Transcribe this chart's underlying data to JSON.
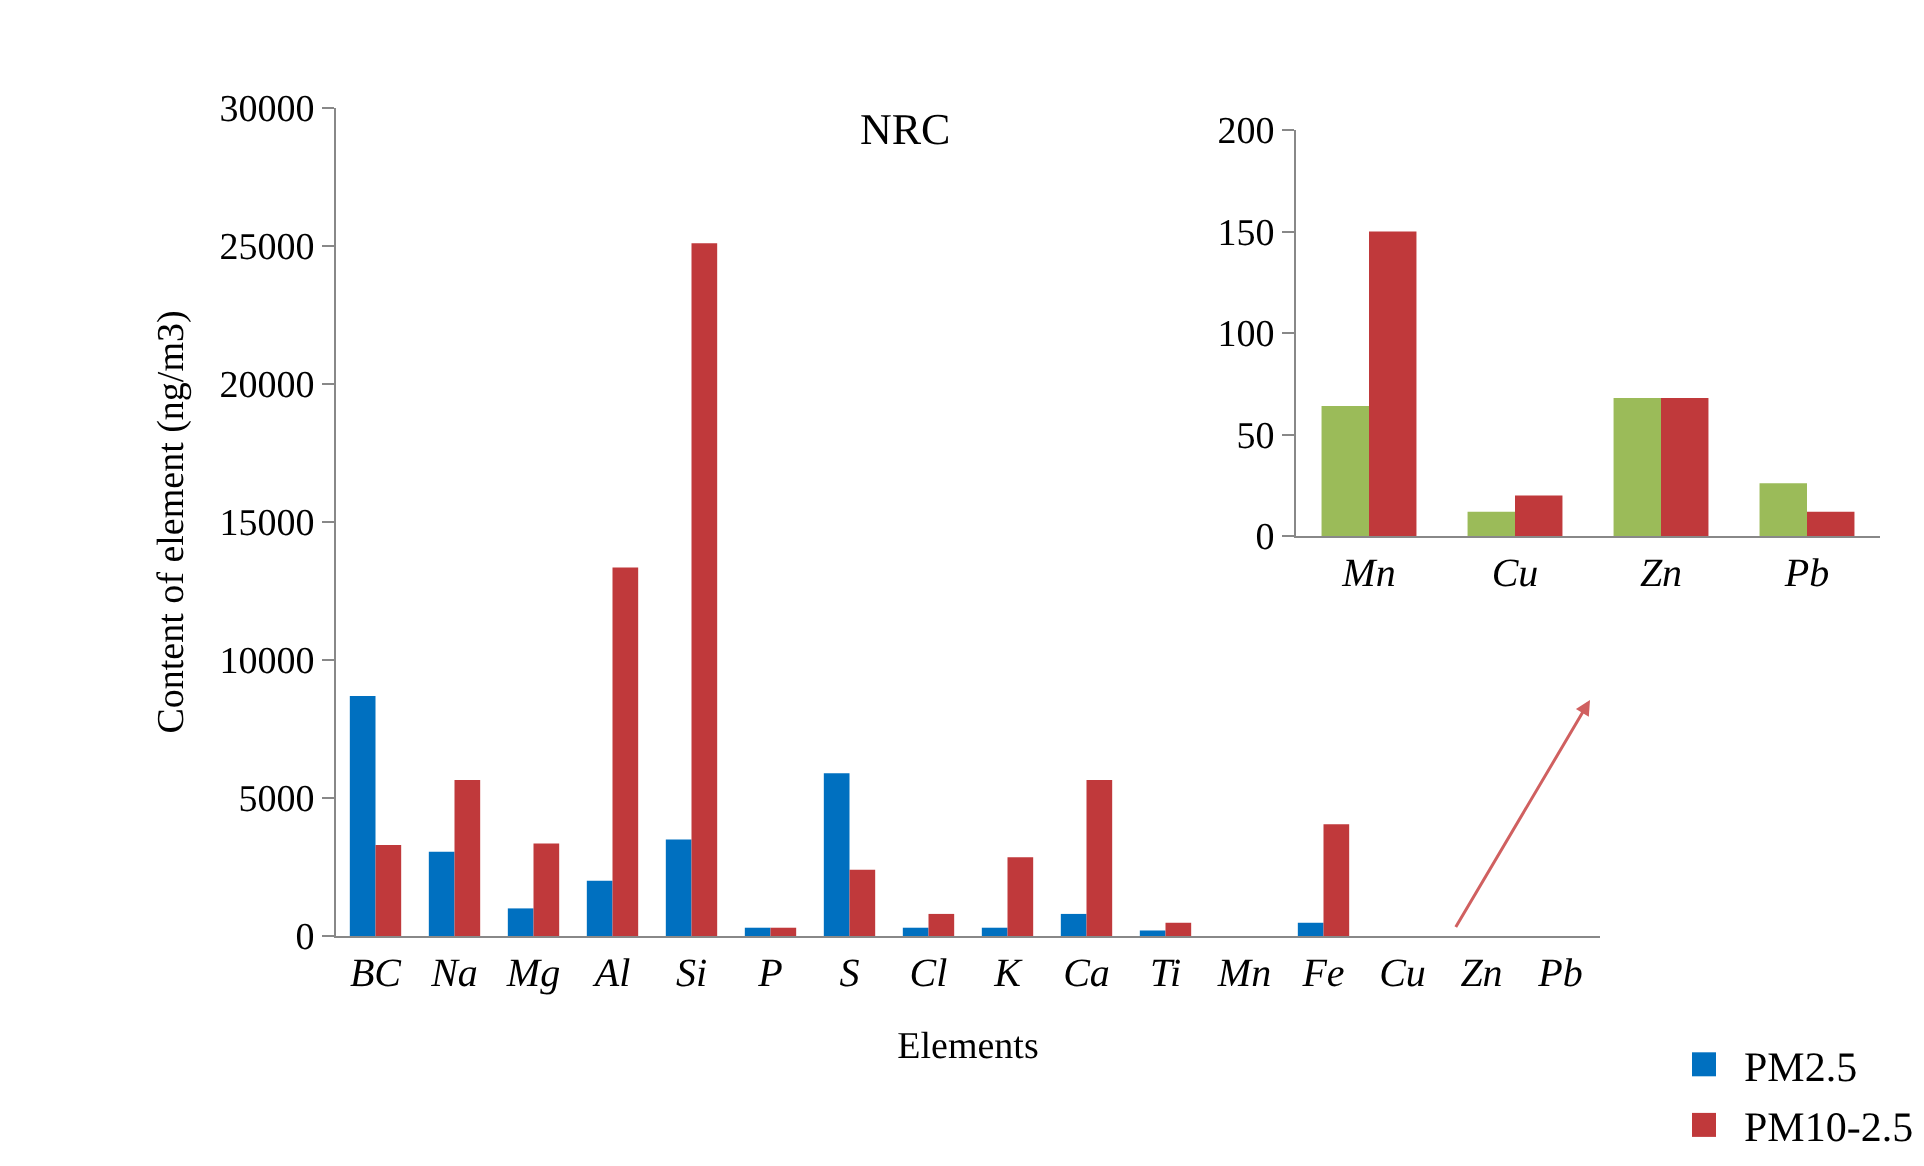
{
  "chart_data": [
    {
      "type": "bar",
      "title": "NRC",
      "xlabel": "Elements",
      "ylabel": "Content of element (ng/m3)",
      "categories": [
        "BC",
        "Na",
        "Mg",
        "Al",
        "Si",
        "P",
        "S",
        "Cl",
        "K",
        "Ca",
        "Ti",
        "Mn",
        "Fe",
        "Cu",
        "Zn",
        "Pb"
      ],
      "series": [
        {
          "name": "PM2.5",
          "color": "#0070c0",
          "values": [
            8700,
            3050,
            1000,
            2000,
            3500,
            300,
            5900,
            300,
            300,
            800,
            200,
            0,
            480,
            0,
            0,
            0
          ]
        },
        {
          "name": "PM10-2.5",
          "color": "#c0393b",
          "values": [
            3300,
            5650,
            3350,
            13350,
            25100,
            300,
            2400,
            800,
            2850,
            5650,
            480,
            0,
            4050,
            0,
            0,
            0
          ]
        }
      ],
      "ylim": [
        0,
        30000
      ],
      "yticks": [
        0,
        5000,
        10000,
        15000,
        20000,
        25000,
        30000
      ],
      "legend": "bottom right"
    },
    {
      "type": "bar",
      "categories": [
        "Mn",
        "Cu",
        "Zn",
        "Pb"
      ],
      "series": [
        {
          "color": "#9bbb59",
          "values": [
            64,
            12,
            68,
            26
          ]
        },
        {
          "color": "#c0393b",
          "values": [
            150,
            20,
            68,
            12
          ]
        }
      ],
      "ylim": [
        0,
        200
      ],
      "yticks": [
        0,
        50,
        100,
        150,
        200
      ]
    }
  ]
}
